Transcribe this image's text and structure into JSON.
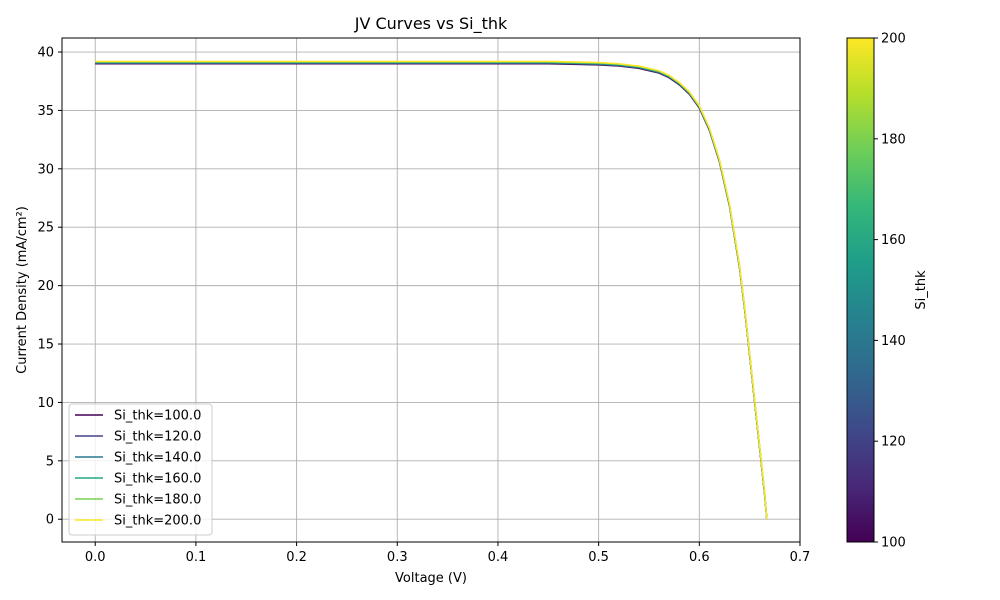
{
  "chart_data": {
    "type": "line",
    "title": "JV Curves vs Si_thk",
    "xlabel": "Voltage (V)",
    "ylabel": "Current Density (mA/cm²)",
    "xlim": [
      -0.033,
      0.7
    ],
    "ylim": [
      -1.95,
      41.2
    ],
    "xticks": [
      0.0,
      0.1,
      0.2,
      0.3,
      0.4,
      0.5,
      0.6,
      0.7
    ],
    "xtick_labels": [
      "0.0",
      "0.1",
      "0.2",
      "0.3",
      "0.4",
      "0.5",
      "0.6",
      "0.7"
    ],
    "yticks": [
      0,
      5,
      10,
      15,
      20,
      25,
      30,
      35,
      40
    ],
    "ytick_labels": [
      "0",
      "5",
      "10",
      "15",
      "20",
      "25",
      "30",
      "35",
      "40"
    ],
    "grid": true,
    "legend_position": "lower-left",
    "x": [
      0.0,
      0.05,
      0.1,
      0.15,
      0.2,
      0.25,
      0.3,
      0.35,
      0.4,
      0.45,
      0.5,
      0.52,
      0.54,
      0.56,
      0.57,
      0.58,
      0.59,
      0.6,
      0.61,
      0.62,
      0.63,
      0.64,
      0.645,
      0.65,
      0.655,
      0.66,
      0.665,
      0.667
    ],
    "series": [
      {
        "name": "Si_thk=100.0",
        "color": "#440154",
        "values": [
          39.0,
          39.0,
          39.0,
          39.0,
          39.0,
          39.0,
          39.0,
          39.0,
          39.0,
          39.0,
          38.9,
          38.8,
          38.6,
          38.2,
          37.8,
          37.2,
          36.4,
          35.2,
          33.3,
          30.6,
          26.8,
          21.5,
          18.0,
          14.0,
          10.0,
          6.0,
          2.0,
          0.0
        ]
      },
      {
        "name": "Si_thk=120.0",
        "color": "#414487",
        "values": [
          39.04,
          39.04,
          39.04,
          39.04,
          39.04,
          39.04,
          39.04,
          39.04,
          39.04,
          39.04,
          38.94,
          38.84,
          38.64,
          38.24,
          37.84,
          37.24,
          36.44,
          35.24,
          33.34,
          30.64,
          26.84,
          21.54,
          18.04,
          14.04,
          10.04,
          6.04,
          2.04,
          0.0
        ]
      },
      {
        "name": "Si_thk=140.0",
        "color": "#2a788e",
        "values": [
          39.08,
          39.08,
          39.08,
          39.08,
          39.08,
          39.08,
          39.08,
          39.08,
          39.08,
          39.08,
          38.98,
          38.88,
          38.68,
          38.28,
          37.88,
          37.28,
          36.48,
          35.28,
          33.38,
          30.68,
          26.88,
          21.58,
          18.08,
          14.08,
          10.08,
          6.08,
          2.08,
          0.0
        ]
      },
      {
        "name": "Si_thk=160.0",
        "color": "#22a884",
        "values": [
          39.12,
          39.12,
          39.12,
          39.12,
          39.12,
          39.12,
          39.12,
          39.12,
          39.12,
          39.12,
          39.02,
          38.92,
          38.72,
          38.32,
          37.92,
          37.32,
          36.52,
          35.32,
          33.42,
          30.72,
          26.92,
          21.62,
          18.12,
          14.12,
          10.12,
          6.12,
          2.12,
          0.0
        ]
      },
      {
        "name": "Si_thk=180.0",
        "color": "#7ad151",
        "values": [
          39.16,
          39.16,
          39.16,
          39.16,
          39.16,
          39.16,
          39.16,
          39.16,
          39.16,
          39.16,
          39.06,
          38.96,
          38.76,
          38.36,
          37.96,
          37.36,
          36.56,
          35.36,
          33.46,
          30.76,
          26.96,
          21.66,
          18.16,
          14.16,
          10.16,
          6.16,
          2.16,
          0.0
        ]
      },
      {
        "name": "Si_thk=200.0",
        "color": "#fde725",
        "values": [
          39.2,
          39.2,
          39.2,
          39.2,
          39.2,
          39.2,
          39.2,
          39.2,
          39.2,
          39.2,
          39.1,
          39.0,
          38.8,
          38.4,
          38.0,
          37.4,
          36.6,
          35.4,
          33.5,
          30.8,
          27.0,
          21.7,
          18.2,
          14.2,
          10.2,
          6.2,
          2.2,
          0.0
        ]
      }
    ],
    "colorbar": {
      "label": "Si_thk",
      "range": [
        100,
        200
      ],
      "ticks": [
        100,
        120,
        140,
        160,
        180,
        200
      ],
      "tick_labels": [
        "100",
        "120",
        "140",
        "160",
        "180",
        "200"
      ],
      "colormap": "viridis",
      "stops": [
        "#440154",
        "#482878",
        "#3e4989",
        "#31688e",
        "#26828e",
        "#1f9e89",
        "#35b779",
        "#6ece58",
        "#b5de2b",
        "#fde725"
      ]
    }
  }
}
